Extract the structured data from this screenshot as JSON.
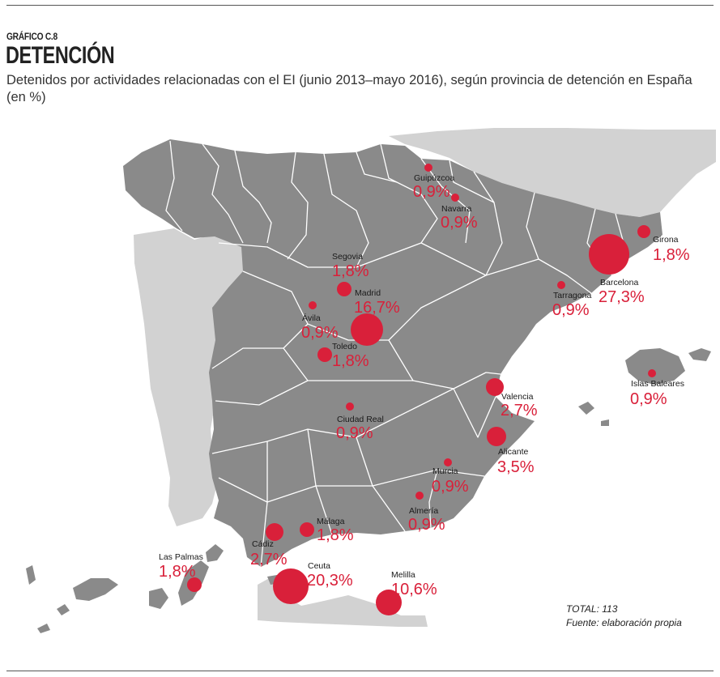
{
  "header": {
    "figure_label": "GRÁFICO C.8",
    "title": "DETENCIÓN",
    "subtitle": "Detenidos por actividades relacionadas con el EI (junio 2013–mayo 2016), según provincia de detención en España (en %)"
  },
  "footer": {
    "total": "TOTAL: 113",
    "source": "Fuente: elaboración propia"
  },
  "colors": {
    "land_spain": "#8a8a8a",
    "land_other": "#d2d2d2",
    "border": "#ffffff",
    "marker": "#d9203a"
  },
  "provinces": [
    {
      "name": "Guipúzcoa",
      "pct": "0,9%",
      "value": 0.9
    },
    {
      "name": "Navarra",
      "pct": "0,9%",
      "value": 0.9
    },
    {
      "name": "Girona",
      "pct": "1,8%",
      "value": 1.8
    },
    {
      "name": "Barcelona",
      "pct": "27,3%",
      "value": 27.3
    },
    {
      "name": "Segovia",
      "pct": "1,8%",
      "value": 1.8
    },
    {
      "name": "Madrid",
      "pct": "16,7%",
      "value": 16.7
    },
    {
      "name": "Tarragona",
      "pct": "0,9%",
      "value": 0.9
    },
    {
      "name": "Ávila",
      "pct": "0,9%",
      "value": 0.9
    },
    {
      "name": "Toledo",
      "pct": "1,8%",
      "value": 1.8
    },
    {
      "name": "Islas Baleares",
      "pct": "0,9%",
      "value": 0.9
    },
    {
      "name": "Valencia",
      "pct": "2,7%",
      "value": 2.7
    },
    {
      "name": "Ciudad Real",
      "pct": "0,9%",
      "value": 0.9
    },
    {
      "name": "Alicante",
      "pct": "3,5%",
      "value": 3.5
    },
    {
      "name": "Murcia",
      "pct": "0,9%",
      "value": 0.9
    },
    {
      "name": "Almería",
      "pct": "0,9%",
      "value": 0.9
    },
    {
      "name": "Málaga",
      "pct": "1,8%",
      "value": 1.8
    },
    {
      "name": "Cádiz",
      "pct": "2,7%",
      "value": 2.7
    },
    {
      "name": "Las Palmas",
      "pct": "1,8%",
      "value": 1.8
    },
    {
      "name": "Ceuta",
      "pct": "20,3%",
      "value": 20.3
    },
    {
      "name": "Melilla",
      "pct": "10,6%",
      "value": 10.6
    }
  ]
}
